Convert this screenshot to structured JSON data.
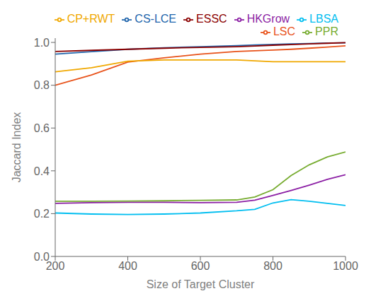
{
  "chart_data": {
    "type": "line",
    "xlabel": "Size of Target Cluster",
    "ylabel": "Jaccard Index",
    "x": [
      200,
      300,
      400,
      500,
      600,
      700,
      750,
      800,
      850,
      900,
      950,
      1000
    ],
    "series": [
      {
        "name": "CS-LCE",
        "color": "#2165ac",
        "values": [
          0.945,
          0.957,
          0.968,
          0.975,
          0.98,
          0.985,
          0.988,
          0.991,
          0.993,
          0.995,
          0.997,
          0.998
        ]
      },
      {
        "name": "LSC",
        "color": "#e8521a",
        "values": [
          0.8,
          0.848,
          0.908,
          0.928,
          0.945,
          0.958,
          0.961,
          0.964,
          0.968,
          0.973,
          0.978,
          0.984
        ]
      },
      {
        "name": "CP+RWT",
        "color": "#f0a800",
        "values": [
          0.863,
          0.882,
          0.912,
          0.918,
          0.918,
          0.918,
          0.914,
          0.91,
          0.91,
          0.91,
          0.91,
          0.91
        ]
      },
      {
        "name": "HKGrow",
        "color": "#8b1ea4",
        "values": [
          0.248,
          0.251,
          0.253,
          0.253,
          0.251,
          0.253,
          0.263,
          0.285,
          0.308,
          0.333,
          0.36,
          0.382
        ]
      },
      {
        "name": "PPR",
        "color": "#77ac30",
        "values": [
          0.258,
          0.258,
          0.259,
          0.26,
          0.262,
          0.264,
          0.278,
          0.312,
          0.378,
          0.428,
          0.465,
          0.488
        ]
      },
      {
        "name": "LBSA",
        "color": "#00bef0",
        "values": [
          0.203,
          0.198,
          0.196,
          0.198,
          0.203,
          0.213,
          0.22,
          0.25,
          0.265,
          0.258,
          0.248,
          0.238
        ]
      },
      {
        "name": "ESSC",
        "color": "#8b0000",
        "values": [
          0.958,
          0.963,
          0.968,
          0.973,
          0.977,
          0.98,
          0.983,
          0.987,
          0.99,
          0.993,
          0.996,
          0.999
        ]
      }
    ],
    "xlim": [
      200,
      1000
    ],
    "ylim": [
      0,
      1.02
    ],
    "xticks": [
      200,
      400,
      600,
      800,
      1000
    ],
    "yticks": [
      {
        "value": 0,
        "label": "0.0"
      },
      0.2,
      0.4,
      0.6,
      0.8,
      {
        "value": 1.0,
        "label": "1.0"
      }
    ],
    "legend": "upper right",
    "grid": false
  }
}
